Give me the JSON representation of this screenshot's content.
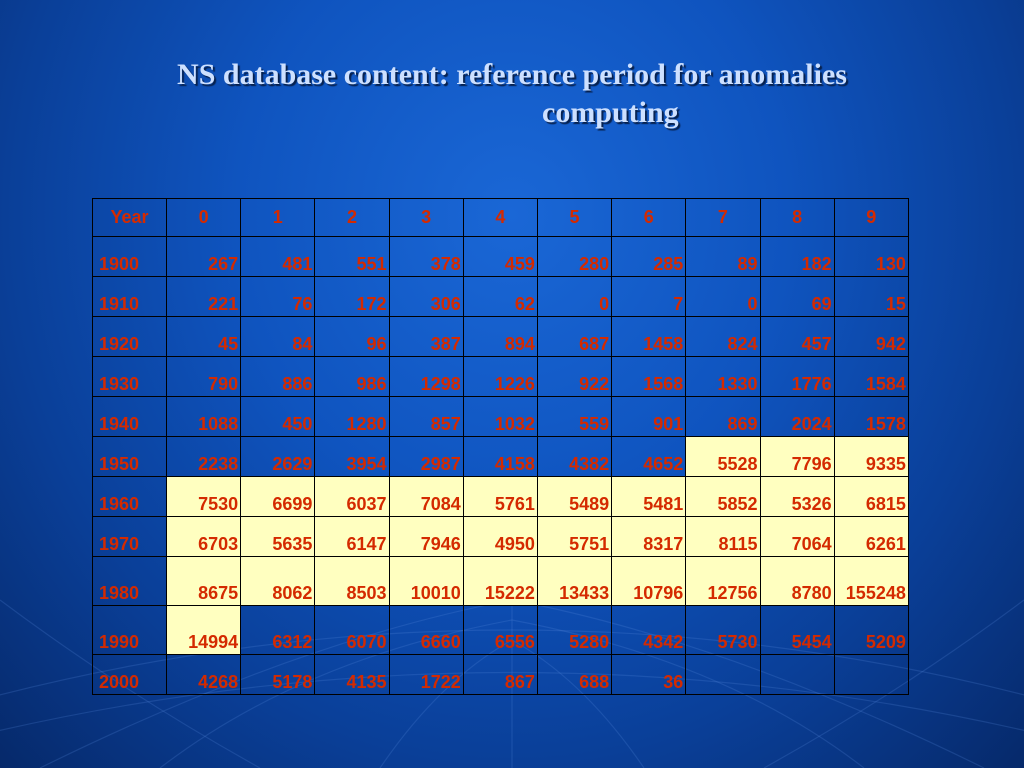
{
  "slide": {
    "title_line1": "NS database content: reference period for anomalies",
    "title_line2": "computing"
  },
  "colors": {
    "background": "#0f54bf",
    "cell_text": "#d42a00",
    "highlight_fill": "#ffffc0",
    "title_text": "#cde0ff"
  },
  "table": {
    "headers": [
      "Year",
      "0",
      "1",
      "2",
      "3",
      "4",
      "5",
      "6",
      "7",
      "8",
      "9"
    ],
    "rows": [
      {
        "year": "1900",
        "values": [
          "267",
          "481",
          "551",
          "378",
          "459",
          "280",
          "285",
          "89",
          "182",
          "130"
        ],
        "highlight": [
          false,
          false,
          false,
          false,
          false,
          false,
          false,
          false,
          false,
          false
        ]
      },
      {
        "year": "1910",
        "values": [
          "221",
          "76",
          "172",
          "306",
          "62",
          "0",
          "7",
          "0",
          "69",
          "15"
        ],
        "highlight": [
          false,
          false,
          false,
          false,
          false,
          false,
          false,
          false,
          false,
          false
        ]
      },
      {
        "year": "1920",
        "values": [
          "45",
          "84",
          "96",
          "387",
          "894",
          "687",
          "1458",
          "824",
          "457",
          "942"
        ],
        "highlight": [
          false,
          false,
          false,
          false,
          false,
          false,
          false,
          false,
          false,
          false
        ]
      },
      {
        "year": "1930",
        "values": [
          "790",
          "886",
          "986",
          "1298",
          "1226",
          "922",
          "1568",
          "1330",
          "1776",
          "1584"
        ],
        "highlight": [
          false,
          false,
          false,
          false,
          false,
          false,
          false,
          false,
          false,
          false
        ]
      },
      {
        "year": "1940",
        "values": [
          "1088",
          "450",
          "1280",
          "857",
          "1032",
          "559",
          "901",
          "869",
          "2024",
          "1578"
        ],
        "highlight": [
          false,
          false,
          false,
          false,
          false,
          false,
          false,
          false,
          false,
          false
        ]
      },
      {
        "year": "1950",
        "values": [
          "2238",
          "2629",
          "3954",
          "2987",
          "4158",
          "4382",
          "4652",
          "5528",
          "7796",
          "9335"
        ],
        "highlight": [
          false,
          false,
          false,
          false,
          false,
          false,
          false,
          true,
          true,
          true
        ]
      },
      {
        "year": "1960",
        "values": [
          "7530",
          "6699",
          "6037",
          "7084",
          "5761",
          "5489",
          "5481",
          "5852",
          "5326",
          "6815"
        ],
        "highlight": [
          true,
          true,
          true,
          true,
          true,
          true,
          true,
          true,
          true,
          true
        ]
      },
      {
        "year": "1970",
        "values": [
          "6703",
          "5635",
          "6147",
          "7946",
          "4950",
          "5751",
          "8317",
          "8115",
          "7064",
          "6261"
        ],
        "highlight": [
          true,
          true,
          true,
          true,
          true,
          true,
          true,
          true,
          true,
          true
        ]
      },
      {
        "year": "1980",
        "values": [
          "8675",
          "8062",
          "8503",
          "10010",
          "15222",
          "13433",
          "10796",
          "12756",
          "8780",
          "155248"
        ],
        "highlight": [
          true,
          true,
          true,
          true,
          true,
          true,
          true,
          true,
          true,
          true
        ]
      },
      {
        "year": "1990",
        "values": [
          "14994",
          "6312",
          "6070",
          "6660",
          "6556",
          "5280",
          "4342",
          "5730",
          "5454",
          "5209"
        ],
        "highlight": [
          true,
          false,
          false,
          false,
          false,
          false,
          false,
          false,
          false,
          false
        ]
      },
      {
        "year": "2000",
        "values": [
          "4268",
          "5178",
          "4135",
          "1722",
          "867",
          "688",
          "36",
          "",
          "",
          ""
        ],
        "highlight": [
          false,
          false,
          false,
          false,
          false,
          false,
          false,
          false,
          false,
          false
        ]
      }
    ]
  }
}
